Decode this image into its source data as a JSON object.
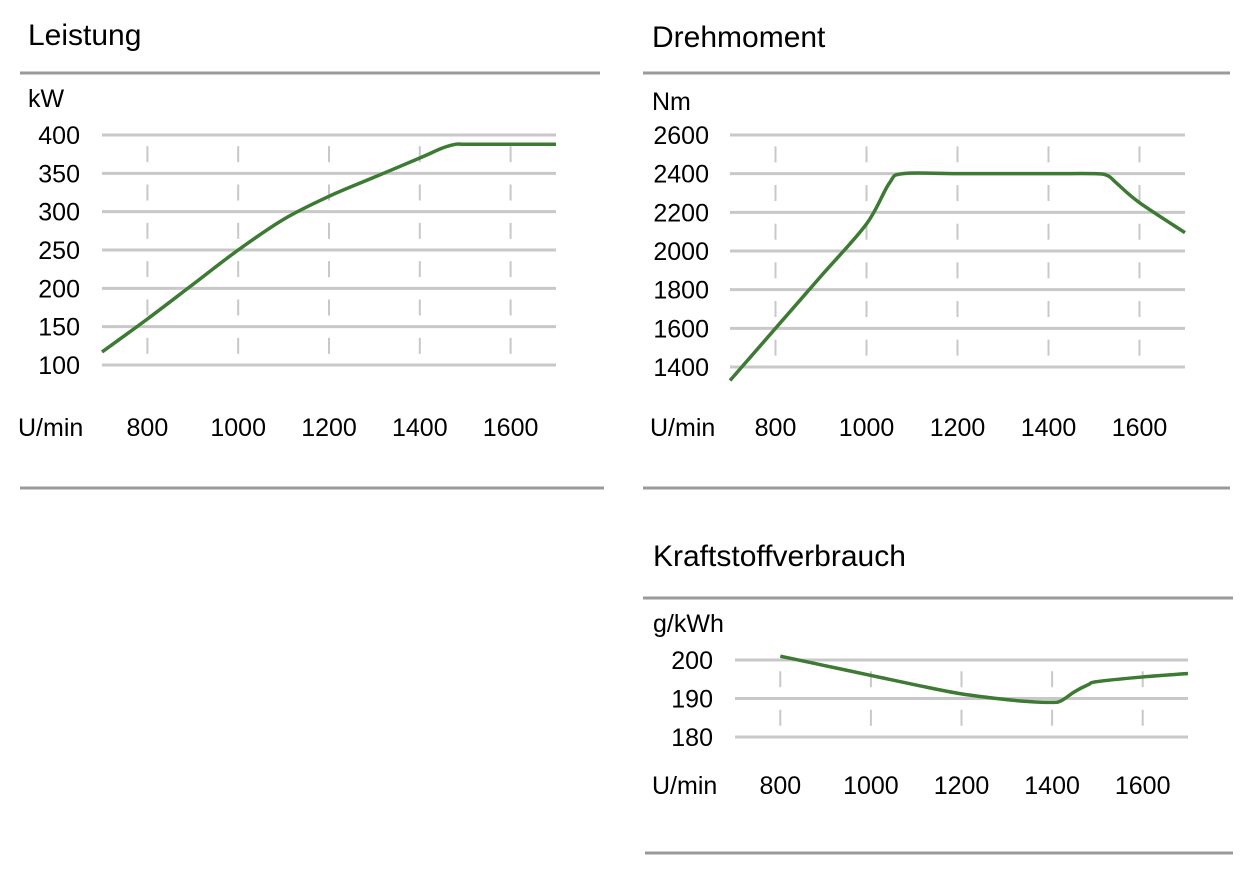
{
  "colors": {
    "line": "#3d7a34",
    "grid": "#c8c8c8",
    "rule": "#9a9a9a",
    "text": "#1a1a1a"
  },
  "chart_data": [
    {
      "id": "leistung",
      "type": "line",
      "title": "Leistung",
      "ylabel": "kW",
      "xlabel": "U/min",
      "x_ticks": [
        800,
        1000,
        1200,
        1400,
        1600
      ],
      "y_ticks": [
        100,
        150,
        200,
        250,
        300,
        350,
        400
      ],
      "xlim": [
        700,
        1700
      ],
      "ylim": [
        100,
        400
      ],
      "grid": true,
      "series": [
        {
          "x": [
            700,
            800,
            900,
            1000,
            1100,
            1200,
            1300,
            1400,
            1450,
            1480,
            1500,
            1600,
            1700
          ],
          "y": [
            117,
            160,
            205,
            250,
            290,
            320,
            345,
            370,
            383,
            388,
            388,
            388,
            388
          ]
        }
      ]
    },
    {
      "id": "drehmoment",
      "type": "line",
      "title": "Drehmoment",
      "ylabel": "Nm",
      "xlabel": "U/min",
      "x_ticks": [
        800,
        1000,
        1200,
        1400,
        1600
      ],
      "y_ticks": [
        1400,
        1600,
        1800,
        2000,
        2200,
        2400,
        2600
      ],
      "xlim": [
        700,
        1700
      ],
      "ylim": [
        1400,
        2600
      ],
      "grid": true,
      "series": [
        {
          "x": [
            700,
            800,
            900,
            1000,
            1050,
            1080,
            1200,
            1400,
            1500,
            1530,
            1550,
            1600,
            1700
          ],
          "y": [
            1330,
            1600,
            1870,
            2140,
            2350,
            2400,
            2400,
            2400,
            2400,
            2390,
            2350,
            2250,
            2095
          ]
        }
      ]
    },
    {
      "id": "kraftstoffverbrauch",
      "type": "line",
      "title": "Kraftstoffverbrauch",
      "ylabel": "g/kWh",
      "xlabel": "U/min",
      "x_ticks": [
        800,
        1000,
        1200,
        1400,
        1600
      ],
      "y_ticks": [
        180,
        190,
        200
      ],
      "xlim": [
        700,
        1700
      ],
      "ylim": [
        180,
        200
      ],
      "grid": true,
      "series": [
        {
          "x": [
            800,
            900,
            1000,
            1100,
            1200,
            1300,
            1350,
            1400,
            1420,
            1450,
            1480,
            1500,
            1600,
            1700
          ],
          "y": [
            201,
            198.5,
            196,
            193.5,
            191.2,
            189.7,
            189.2,
            189,
            189.4,
            191.8,
            193.6,
            194.4,
            195.6,
            196.5
          ]
        }
      ]
    }
  ]
}
